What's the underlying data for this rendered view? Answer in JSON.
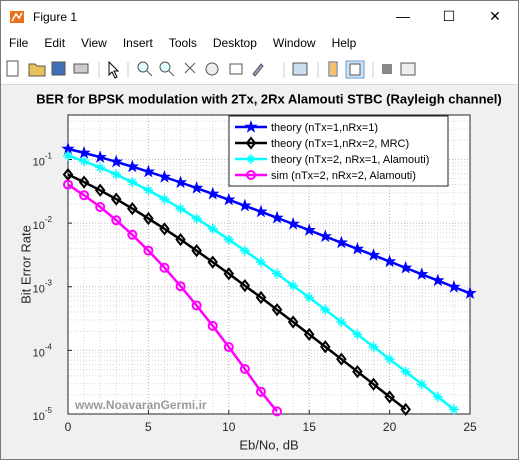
{
  "window": {
    "title": "Figure 1",
    "menu": [
      "File",
      "Edit",
      "View",
      "Insert",
      "Tools",
      "Desktop",
      "Window",
      "Help"
    ]
  },
  "chart_data": {
    "type": "line",
    "title": "BER for BPSK modulation with 2Tx, 2Rx Alamouti STBC (Rayleigh channel)",
    "xlabel": "Eb/No, dB",
    "ylabel": "Bit Error Rate",
    "annotation": "www.NoavaranGermi.ir",
    "x": [
      0,
      1,
      2,
      3,
      4,
      5,
      6,
      7,
      8,
      9,
      10,
      11,
      12,
      13,
      14,
      15,
      16,
      17,
      18,
      19,
      20,
      21,
      22,
      23,
      24,
      25
    ],
    "series": [
      {
        "name": "theory (nTx=1,nRx=1)",
        "color": "#0000ff",
        "marker": "star",
        "values": [
          0.1464,
          0.1267,
          0.1085,
          0.0919,
          0.0771,
          0.0642,
          0.053,
          0.0435,
          0.0355,
          0.0288,
          0.0233,
          0.0187,
          0.0151,
          0.0121,
          0.00968,
          0.00773,
          0.00617,
          0.00493,
          0.00393,
          0.00313,
          0.00249,
          0.00198,
          0.00157,
          0.00125,
          0.00099,
          0.00079
        ]
      },
      {
        "name": "theory (nTx=1,nRx=2, MRC)",
        "color": "#000000",
        "marker": "diamond",
        "values": [
          0.058,
          0.0441,
          0.0328,
          0.0238,
          0.0169,
          0.0118,
          0.00813,
          0.00551,
          0.00369,
          0.00244,
          0.0016,
          0.00104,
          0.000677,
          0.000436,
          0.000279,
          0.000178,
          0.000114,
          7.27e-05,
          4.63e-05,
          2.94e-05,
          1.86e-05,
          1.18e-05,
          null,
          null,
          null,
          null
        ]
      },
      {
        "name": "theory (nTx=2, nRx=1, Alamouti)",
        "color": "#00ffff",
        "marker": "plus",
        "values": [
          0.1151,
          0.0937,
          0.0747,
          0.058,
          0.0441,
          0.0328,
          0.0238,
          0.0169,
          0.0118,
          0.00813,
          0.00551,
          0.00369,
          0.00244,
          0.0016,
          0.00104,
          0.000677,
          0.000436,
          0.000279,
          0.000178,
          0.000114,
          7.27e-05,
          4.63e-05,
          2.94e-05,
          1.86e-05,
          1.18e-05,
          null
        ]
      },
      {
        "name": "sim (nTx=2, nRx=2, Alamouti)",
        "color": "#ff00ff",
        "marker": "circle",
        "values": [
          0.0403,
          0.0274,
          0.0179,
          0.0111,
          0.00656,
          0.0037,
          0.00199,
          0.00102,
          0.000508,
          0.000243,
          0.000113,
          5.1e-05,
          2.24e-05,
          1.1e-05,
          null,
          null,
          null,
          null,
          null,
          null,
          null,
          null,
          null,
          null,
          null,
          null
        ]
      }
    ],
    "xlim": [
      0,
      25
    ],
    "xticks": [
      0,
      5,
      10,
      15,
      20,
      25
    ],
    "ylim": [
      1e-05,
      0.5
    ],
    "log_y": true,
    "yticks": [
      {
        "value": 1e-05,
        "label": "10",
        "exponent": "-5"
      },
      {
        "value": 0.0001,
        "label": "10",
        "exponent": "-4"
      },
      {
        "value": 0.001,
        "label": "10",
        "exponent": "-3"
      },
      {
        "value": 0.01,
        "label": "10",
        "exponent": "-2"
      },
      {
        "value": 0.1,
        "label": "10",
        "exponent": "-1"
      }
    ],
    "grid": true,
    "minor_grid": true,
    "legend": "northeast"
  }
}
